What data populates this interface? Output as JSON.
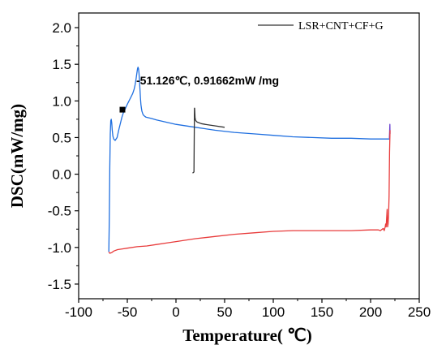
{
  "chart_data": {
    "type": "line",
    "title": "",
    "xlabel": "Temperature( ℃)",
    "ylabel": "DSC(mW/mg)",
    "xlim": [
      -100,
      250
    ],
    "ylim": [
      -1.7,
      2.2
    ],
    "x_ticks": [
      -100,
      -50,
      0,
      50,
      100,
      150,
      200,
      250
    ],
    "y_ticks": [
      -1.5,
      -1.0,
      -0.5,
      0.0,
      0.5,
      1.0,
      1.5,
      2.0
    ],
    "x_tick_labels": [
      "-100",
      "-50",
      "0",
      "50",
      "100",
      "150",
      "200",
      "250"
    ],
    "y_tick_labels": [
      "-1.5",
      "-1.0",
      "-0.5",
      "0.0",
      "0.5",
      "1.0",
      "1.5",
      "2.0"
    ],
    "grid": false,
    "legend_position": "top-right",
    "legend": [
      {
        "label": "LSR+CNT+CF+G",
        "color": "#333333"
      }
    ],
    "annotation": {
      "text": "-51.126℃, 0.91662mW /mg",
      "x": -55,
      "y": 0.88
    },
    "series": [
      {
        "color": "#1f6fe0",
        "x": [
          -69,
          -68.5,
          -68,
          -67.5,
          -67,
          -66.5,
          -66,
          -65.5,
          -64.8,
          -64,
          -62.5,
          -60.5,
          -58.5,
          -57,
          -55.5,
          -54,
          -52.5,
          -51.5,
          -50.5,
          -49,
          -47.5,
          -46,
          -44.5,
          -43,
          -42,
          -41,
          -40.2,
          -39.5,
          -39,
          -38.5,
          -38,
          -37.5,
          -37,
          -36.5,
          -36,
          -35.5,
          -35,
          -34,
          -33,
          -31,
          -28,
          -25,
          -20,
          -10,
          0,
          20,
          40,
          60,
          80,
          100,
          120,
          140,
          160,
          180,
          200,
          210,
          220
        ],
        "values": [
          -1.06,
          -0.6,
          0.1,
          0.55,
          0.73,
          0.75,
          0.7,
          0.6,
          0.52,
          0.48,
          0.46,
          0.5,
          0.62,
          0.7,
          0.78,
          0.84,
          0.88,
          0.91,
          0.94,
          0.98,
          1.02,
          1.06,
          1.1,
          1.16,
          1.22,
          1.3,
          1.38,
          1.44,
          1.46,
          1.44,
          1.38,
          1.28,
          1.16,
          1.04,
          0.95,
          0.9,
          0.86,
          0.82,
          0.8,
          0.78,
          0.77,
          0.76,
          0.74,
          0.71,
          0.68,
          0.64,
          0.6,
          0.57,
          0.55,
          0.53,
          0.51,
          0.5,
          0.49,
          0.49,
          0.48,
          0.48,
          0.48
        ]
      },
      {
        "color": "#6a3fd0",
        "x": [
          219.3,
          219.8,
          220
        ],
        "values": [
          0.49,
          0.68,
          0.55
        ]
      },
      {
        "color": "#e83b3b",
        "x": [
          -69,
          -68,
          -66,
          -64,
          -60,
          -55,
          -50,
          -40,
          -30,
          -20,
          -10,
          0,
          20,
          40,
          60,
          80,
          100,
          120,
          140,
          160,
          180,
          200,
          205,
          208,
          210,
          212,
          213,
          214,
          215,
          215.5,
          216,
          216.5,
          217,
          217.5,
          218,
          218.5,
          219,
          219.5,
          220
        ],
        "values": [
          -1.06,
          -1.08,
          -1.07,
          -1.05,
          -1.03,
          -1.02,
          -1.01,
          -0.99,
          -0.98,
          -0.96,
          -0.94,
          -0.92,
          -0.88,
          -0.85,
          -0.82,
          -0.8,
          -0.78,
          -0.77,
          -0.77,
          -0.77,
          -0.77,
          -0.76,
          -0.76,
          -0.76,
          -0.77,
          -0.75,
          -0.74,
          -0.77,
          -0.72,
          -0.68,
          -0.72,
          -0.6,
          -0.48,
          -0.72,
          -0.68,
          -0.55,
          -0.3,
          0.3,
          0.6
        ]
      },
      {
        "color": "#333333",
        "x": [
          17,
          17.5,
          18.5,
          19,
          19.2,
          19.6,
          20,
          21,
          22,
          24,
          26,
          30,
          35,
          40,
          50
        ],
        "values": [
          0.02,
          0.02,
          0.03,
          0.9,
          0.9,
          0.78,
          0.74,
          0.72,
          0.71,
          0.7,
          0.69,
          0.68,
          0.67,
          0.66,
          0.64
        ]
      }
    ]
  }
}
